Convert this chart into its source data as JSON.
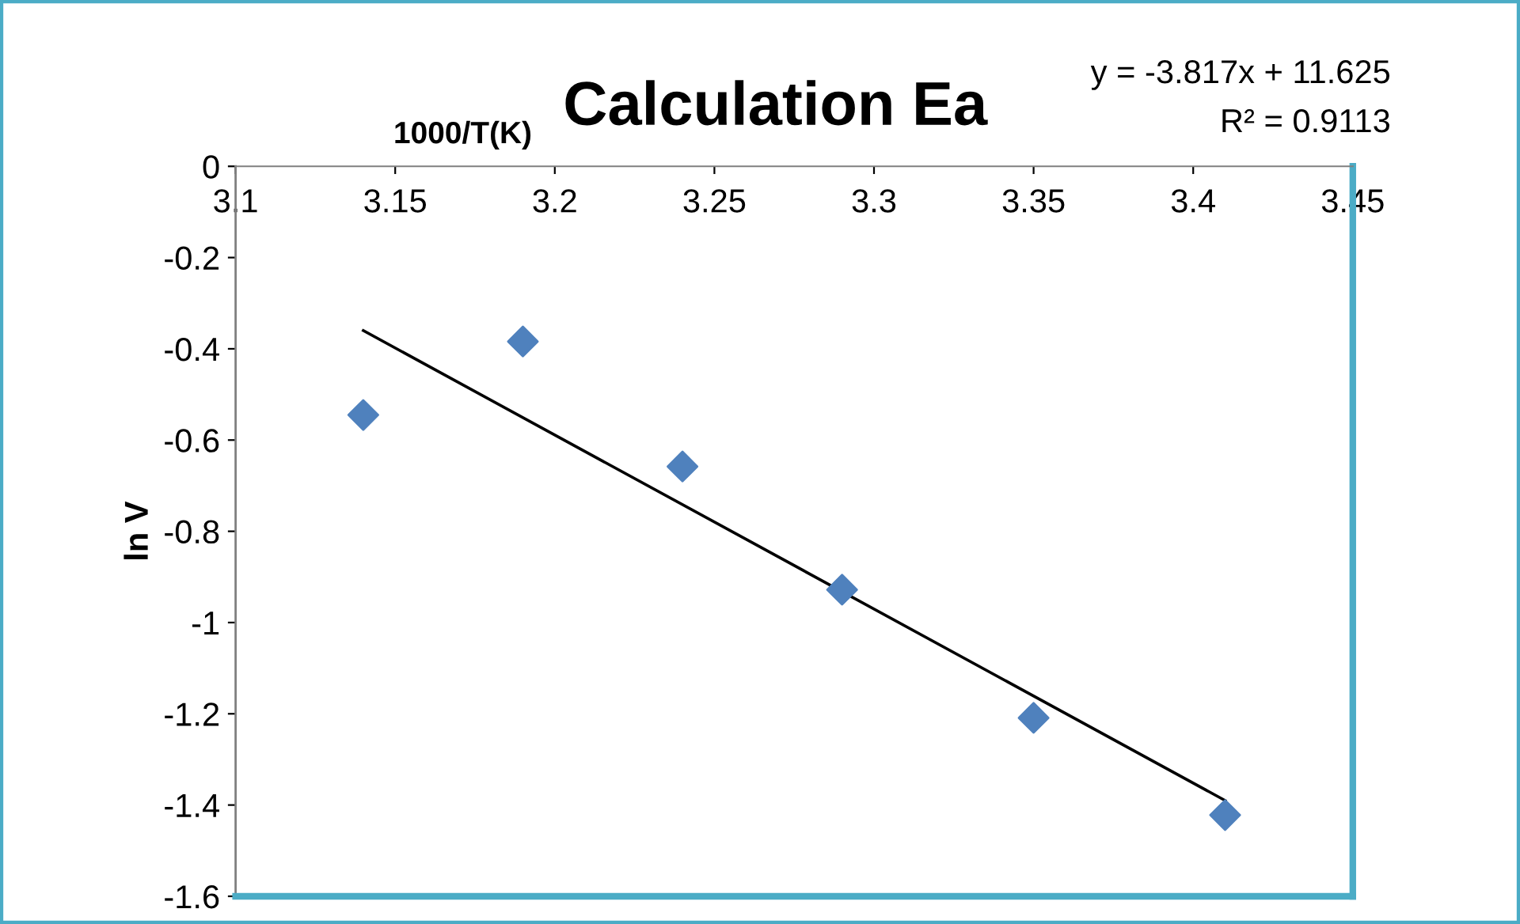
{
  "chart_data": {
    "type": "scatter",
    "title": "Calculation Ea",
    "xlabel": "1000/T(K)",
    "ylabel": "ln V",
    "x": [
      3.14,
      3.19,
      3.24,
      3.29,
      3.35,
      3.41
    ],
    "series": [
      {
        "color": "#4f81bd",
        "marker": "diamond",
        "values": [
          -0.545,
          -0.384,
          -0.658,
          -0.928,
          -1.209,
          -1.422
        ]
      },
      {
        "type": "line",
        "color": "#000000",
        "marker": "none",
        "line_style": "solid",
        "x": [
          3.14,
          3.41
        ],
        "values": [
          -0.36,
          -1.39
        ]
      }
    ],
    "annotations": [
      "y = -3.817x + 11.625",
      "R² = 0.9113"
    ],
    "xlim": [
      3.1,
      3.45
    ],
    "xticks": [
      3.1,
      3.15,
      3.2,
      3.25,
      3.3,
      3.35,
      3.4,
      3.45
    ],
    "ylim": [
      -1.6,
      0
    ],
    "yticks": [
      0,
      -0.2,
      -0.4,
      -0.6,
      -0.8,
      -1,
      -1.2,
      -1.4,
      -1.6
    ],
    "grid": false,
    "legend": false
  }
}
